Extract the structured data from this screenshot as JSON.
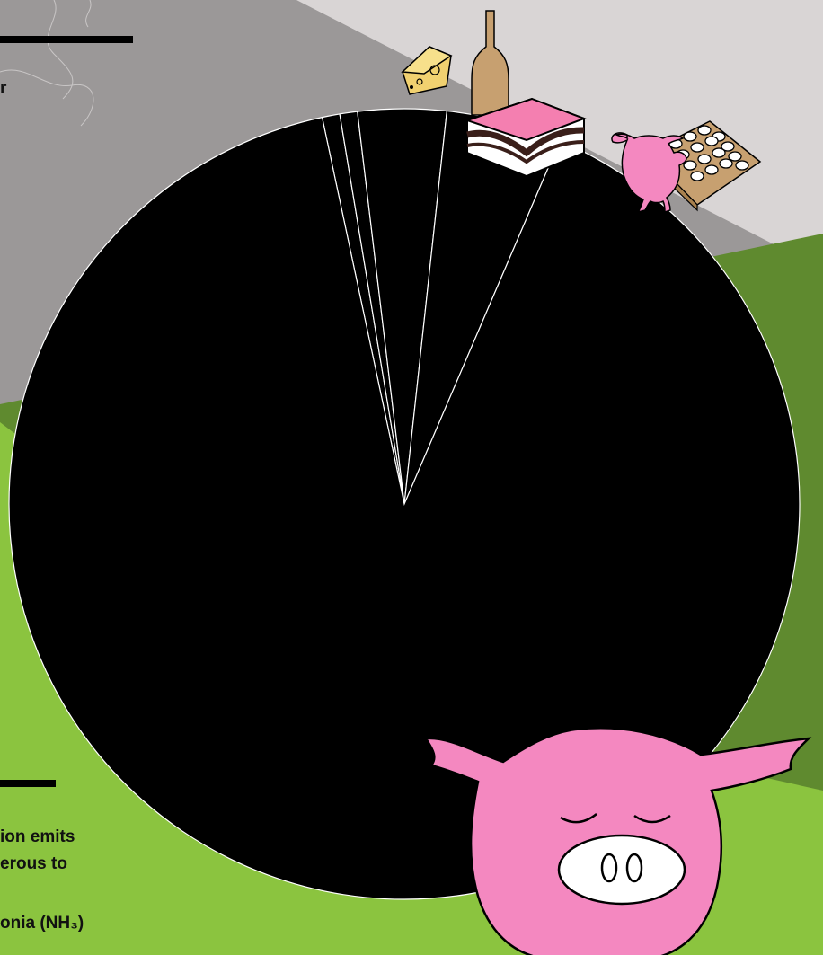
{
  "text": {
    "fragment_top": "r",
    "fragment_line1": "ion emits",
    "fragment_line2": "erous to",
    "fragment_line3": "onia (NH₃)"
  },
  "colors": {
    "background": "#d9d5d5",
    "gray_band": "#9b9898",
    "green_dark": "#5f8a2f",
    "green_light": "#8bc43f",
    "pie": "#000000",
    "pie_stroke": "#ffffff",
    "pink": "#f488c0"
  },
  "icons": [
    "cheese-icon",
    "bottle-icon",
    "butter-icon",
    "chicken-icon",
    "egg-tray-icon",
    "pig-icon"
  ],
  "chart_data": {
    "type": "pie",
    "title": "",
    "start_angle_deg": -12,
    "slices": [
      {
        "label": "",
        "value": 0.72
      },
      {
        "label": "",
        "value": 0.72
      },
      {
        "label": "",
        "value": 3.61
      },
      {
        "label": "",
        "value": 4.72
      },
      {
        "label": "",
        "value": 90.23
      }
    ],
    "legend": false
  }
}
